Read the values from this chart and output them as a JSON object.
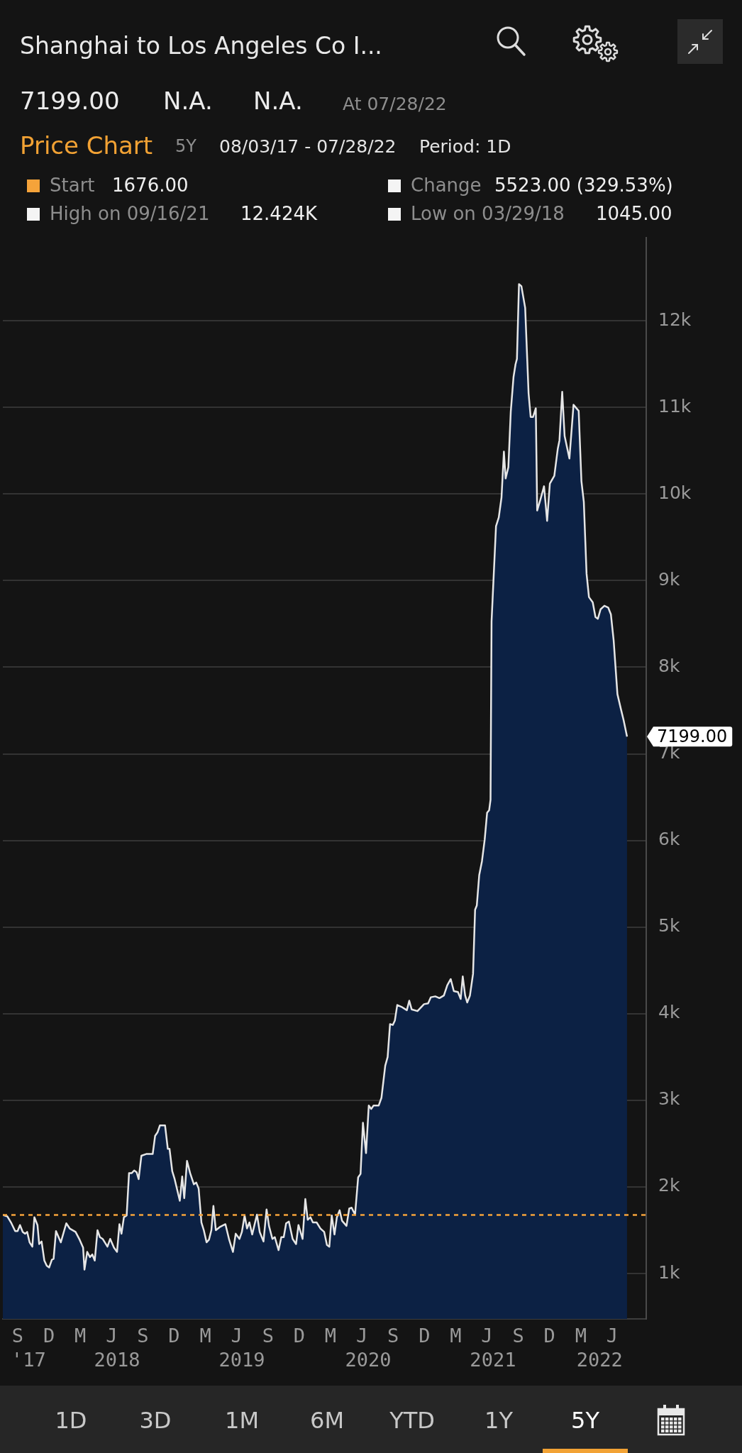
{
  "chart_data": {
    "type": "area",
    "title": "Shanghai to Los Angeles Co I...",
    "subtitle": "Price Chart",
    "annotations": [
      "7199.00",
      "N.A.",
      "N.A.",
      "At 07/28/22",
      "5Y",
      "08/03/17 - 07/28/22",
      "Period: 1D",
      "1676.00",
      "Change",
      "5523.00 (329.53%)",
      "High on 09/16/21",
      "12.424K",
      "Low on 03/29/18",
      "1045.00",
      "1D",
      "3D",
      "1M",
      "6M",
      "YTD",
      "1Y",
      "5Y",
      "S",
      "D",
      "M",
      "J",
      "S",
      "D",
      "M",
      "J",
      "S",
      "D",
      "M",
      "J",
      "S",
      "D",
      "M",
      "J",
      "S",
      "D",
      "M",
      "J"
    ],
    "x": [
      "2017-08-03",
      "2017-08-16",
      "2017-08-28",
      "2017-09-08",
      "2017-09-15",
      "2017-09-22",
      "2017-09-30",
      "2017-10-07",
      "2017-10-13",
      "2017-10-20",
      "2017-10-28",
      "2017-11-03",
      "2017-11-12",
      "2017-11-17",
      "2017-11-24",
      "2017-12-02",
      "2017-12-09",
      "2017-12-16",
      "2017-12-24",
      "2017-12-29",
      "2018-01-05",
      "2018-01-19",
      "2018-02-04",
      "2018-02-14",
      "2018-03-03",
      "2018-03-15",
      "2018-03-25",
      "2018-03-29",
      "2018-04-06",
      "2018-04-14",
      "2018-04-21",
      "2018-04-28",
      "2018-05-06",
      "2018-05-13",
      "2018-05-21",
      "2018-06-04",
      "2018-06-12",
      "2018-06-23",
      "2018-07-02",
      "2018-07-09",
      "2018-07-15",
      "2018-07-22",
      "2018-07-30",
      "2018-08-06",
      "2018-08-14",
      "2018-08-21",
      "2018-08-28",
      "2018-09-03",
      "2018-09-11",
      "2018-09-25",
      "2018-10-14",
      "2018-10-21",
      "2018-10-28",
      "2018-11-04",
      "2018-11-19",
      "2018-11-27",
      "2018-12-02",
      "2018-12-10",
      "2018-12-17",
      "2019-01-01",
      "2019-01-08",
      "2019-01-14",
      "2019-01-22",
      "2019-01-31",
      "2019-02-11",
      "2019-02-18",
      "2019-02-25",
      "2019-03-05",
      "2019-03-12",
      "2019-03-20",
      "2019-03-27",
      "2019-04-03",
      "2019-04-09",
      "2019-04-16",
      "2019-04-29",
      "2019-05-14",
      "2019-05-25",
      "2019-06-05",
      "2019-06-13",
      "2019-06-24",
      "2019-07-01",
      "2019-07-09",
      "2019-07-16",
      "2019-07-23",
      "2019-07-31",
      "2019-08-14",
      "2019-08-22",
      "2019-09-02",
      "2019-09-11",
      "2019-09-18",
      "2019-09-28",
      "2019-10-05",
      "2019-10-16",
      "2019-10-24",
      "2019-10-31",
      "2019-11-07",
      "2019-11-15",
      "2019-11-26",
      "2019-12-06",
      "2019-12-13",
      "2019-12-25",
      "2020-01-02",
      "2020-01-09",
      "2020-01-17",
      "2020-01-24",
      "2020-02-04",
      "2020-02-15",
      "2020-02-26",
      "2020-03-05",
      "2020-03-12",
      "2020-03-19",
      "2020-03-27",
      "2020-04-03",
      "2020-04-11",
      "2020-04-18",
      "2020-05-01",
      "2020-05-09",
      "2020-05-16",
      "2020-05-26",
      "2020-06-04",
      "2020-06-11",
      "2020-06-18",
      "2020-06-27",
      "2020-07-05",
      "2020-07-12",
      "2020-07-19",
      "2020-08-03",
      "2020-08-11",
      "2020-08-22",
      "2020-08-29",
      "2020-09-05",
      "2020-09-13",
      "2020-09-19",
      "2020-09-26",
      "2020-10-08",
      "2020-10-24",
      "2020-10-31",
      "2020-11-07",
      "2020-11-24",
      "2020-12-13",
      "2020-12-25",
      "2021-01-02",
      "2021-01-15",
      "2021-01-27",
      "2021-02-09",
      "2021-02-19",
      "2021-03-01",
      "2021-03-10",
      "2021-03-22",
      "2021-03-30",
      "2021-04-05",
      "2021-04-12",
      "2021-04-18",
      "2021-04-26",
      "2021-05-05",
      "2021-05-11",
      "2021-05-16",
      "2021-05-23",
      "2021-05-31",
      "2021-06-08",
      "2021-06-15",
      "2021-06-21",
      "2021-06-25",
      "2021-06-28",
      "2021-07-11",
      "2021-07-19",
      "2021-07-27",
      "2021-08-03",
      "2021-08-08",
      "2021-08-16",
      "2021-08-23",
      "2021-08-31",
      "2021-09-06",
      "2021-09-10",
      "2021-09-16",
      "2021-09-23",
      "2021-10-04",
      "2021-10-14",
      "2021-10-20",
      "2021-10-27",
      "2021-11-04",
      "2021-11-08",
      "2021-11-17",
      "2021-11-28",
      "2021-12-07",
      "2021-12-15",
      "2021-12-28",
      "2022-01-07",
      "2022-01-12",
      "2022-01-20",
      "2022-01-27",
      "2022-02-10",
      "2022-02-22",
      "2022-03-09",
      "2022-03-17",
      "2022-03-24",
      "2022-04-01",
      "2022-04-08",
      "2022-04-19",
      "2022-04-27",
      "2022-05-04",
      "2022-05-12",
      "2022-05-23",
      "2022-06-03",
      "2022-06-11",
      "2022-06-19",
      "2022-06-30",
      "2022-07-10",
      "2022-07-18",
      "2022-07-28"
    ],
    "series": [
      {
        "color": "#0c2144",
        "values": [
          1676,
          1660,
          1580,
          1490,
          1490,
          1560,
          1480,
          1460,
          1480,
          1360,
          1310,
          1650,
          1560,
          1340,
          1370,
          1150,
          1090,
          1070,
          1160,
          1170,
          1490,
          1360,
          1580,
          1520,
          1480,
          1390,
          1300,
          1045,
          1250,
          1190,
          1220,
          1150,
          1500,
          1420,
          1400,
          1310,
          1400,
          1300,
          1250,
          1570,
          1460,
          1650,
          1670,
          2160,
          2160,
          2190,
          2170,
          2090,
          2360,
          2380,
          2380,
          2590,
          2630,
          2710,
          2710,
          2440,
          2440,
          2180,
          2090,
          1840,
          2120,
          1870,
          2300,
          2160,
          2030,
          2050,
          1980,
          1590,
          1500,
          1360,
          1390,
          1500,
          1780,
          1500,
          1540,
          1570,
          1390,
          1250,
          1460,
          1400,
          1480,
          1670,
          1520,
          1590,
          1450,
          1680,
          1480,
          1370,
          1740,
          1550,
          1400,
          1420,
          1270,
          1420,
          1420,
          1580,
          1600,
          1400,
          1340,
          1560,
          1400,
          1860,
          1620,
          1650,
          1590,
          1590,
          1520,
          1480,
          1330,
          1310,
          1670,
          1450,
          1650,
          1730,
          1610,
          1550,
          1750,
          1760,
          1680,
          2110,
          2150,
          2740,
          2390,
          2940,
          2900,
          2940,
          2940,
          3030,
          3400,
          3500,
          3880,
          3870,
          3920,
          4100,
          4080,
          4040,
          4150,
          4050,
          4030,
          4110,
          4120,
          4190,
          4200,
          4180,
          4210,
          4330,
          4400,
          4260,
          4250,
          4170,
          4430,
          4210,
          4130,
          4210,
          4460,
          5200,
          5250,
          5600,
          5760,
          6010,
          6320,
          6350,
          6470,
          8530,
          9630,
          9730,
          9960,
          10490,
          10180,
          10310,
          10950,
          11350,
          11500,
          11560,
          12424,
          12400,
          12150,
          11160,
          10890,
          10890,
          10990,
          9810,
          9930,
          10090,
          9690,
          10120,
          10210,
          10520,
          10620,
          11180,
          10670,
          10410,
          11030,
          10960,
          10150,
          9910,
          9080,
          8810,
          8750,
          8580,
          8560,
          8670,
          8710,
          8690,
          8610,
          8310,
          7690,
          7520,
          7390,
          7199
        ],
        "value_labels": [
          null,
          null,
          null,
          null,
          null,
          null,
          null,
          null,
          null,
          null,
          null,
          null,
          null,
          null,
          null,
          null,
          null,
          null,
          null,
          null,
          null,
          null,
          null,
          null,
          null,
          null,
          null,
          null,
          null,
          null,
          null,
          null,
          null,
          null,
          null,
          null,
          null,
          null,
          null,
          null,
          null,
          null,
          null,
          null,
          null,
          null,
          null,
          null,
          null,
          null,
          null,
          null,
          null,
          null,
          null,
          null,
          null,
          null,
          null,
          null,
          null,
          null,
          null,
          null,
          null,
          null,
          null,
          null,
          null,
          null,
          null,
          null,
          null,
          null,
          null,
          null,
          null,
          null,
          null,
          null,
          null,
          null,
          null,
          null,
          null,
          null,
          null,
          null,
          null,
          null,
          null,
          null,
          null,
          null,
          null,
          null,
          null,
          null,
          null,
          null,
          null,
          null,
          null,
          null,
          null,
          null,
          null,
          null,
          null,
          null,
          null,
          null,
          null,
          null,
          null,
          null,
          null,
          null,
          null,
          null,
          null,
          null,
          null,
          null,
          null,
          null,
          null,
          null,
          null,
          null,
          null,
          null,
          null,
          null,
          null,
          null,
          null,
          null,
          null,
          null,
          null,
          null,
          null,
          null,
          null,
          null,
          null,
          null,
          null,
          null,
          null,
          null,
          null,
          null,
          null,
          null,
          null,
          null,
          null,
          null,
          null,
          null,
          null,
          null,
          null,
          null,
          null,
          null,
          null,
          null,
          null,
          null,
          null,
          null,
          null,
          null,
          null,
          null,
          null,
          null,
          null,
          null,
          null,
          null,
          null,
          null,
          null,
          null,
          null,
          null,
          null,
          null,
          null,
          null,
          null,
          null,
          null,
          null,
          null,
          null,
          null,
          null,
          null,
          null,
          null,
          null,
          null,
          null,
          null,
          "7199.00"
        ]
      }
    ],
    "xlim": [
      "2017-08-03",
      "2022-09-22"
    ],
    "xticks": [
      {
        "value": "2017-10-17",
        "label": "'17"
      },
      {
        "value": "2018-07-02",
        "label": "2018"
      },
      {
        "value": "2019-07-01",
        "label": "2019"
      },
      {
        "value": "2020-07-03",
        "label": "2020"
      },
      {
        "value": "2021-07-02",
        "label": "2021"
      },
      {
        "value": "2022-05-09",
        "label": "2022"
      }
    ],
    "ylim": [
      476,
      12960
    ],
    "yticks": [
      {
        "value": 1000,
        "label": "1k"
      },
      {
        "value": 2000,
        "label": "2k"
      },
      {
        "value": 3000,
        "label": "3k"
      },
      {
        "value": 4000,
        "label": "4k"
      },
      {
        "value": 5000,
        "label": "5k"
      },
      {
        "value": 6000,
        "label": "6k"
      },
      {
        "value": 7000,
        "label": "7k"
      },
      {
        "value": 8000,
        "label": "8k"
      },
      {
        "value": 9000,
        "label": "9k"
      },
      {
        "value": 10000,
        "label": "10k"
      },
      {
        "value": 11000,
        "label": "11k"
      },
      {
        "value": 12000,
        "label": "12k"
      }
    ],
    "ref_lines": [
      {
        "axis": "y",
        "value": 1676,
        "label": "Start",
        "color": "#f5a33a",
        "line_style": "dashed"
      }
    ],
    "grid": "y",
    "marker": "none"
  }
}
